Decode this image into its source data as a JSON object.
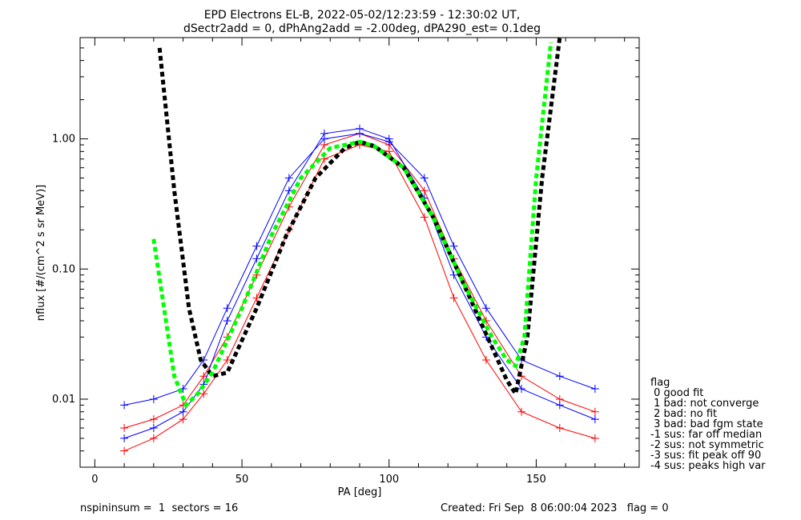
{
  "title_line1": "EPD Electrons EL-B, 2022-05-02/12:23:59 - 12:30:02 UT,",
  "title_line2": "dSectr2add = 0, dPhAng2add = -2.00deg, dPA290_est=   0.1deg",
  "footer_left": "nspininsum =  1  sectors = 16",
  "footer_right": "Created: Fri Sep  8 06:00:04 2023   flag = 0",
  "legend": {
    "title": "flag",
    "items": [
      " 0 good fit",
      " 1 bad: not converge",
      " 2 bad: no fit",
      " 3 bad: bad fgm state",
      "-1 sus: far off median",
      "-2 sus: not symmetric",
      "-3 sus: fit peak off 90",
      "-4 sus: peaks high var"
    ]
  },
  "colors": {
    "series_red": "#ff0000",
    "series_blue": "#0000ff",
    "fit_black": "#000000",
    "fit_green": "#00ff00"
  },
  "chart_data": {
    "type": "line",
    "xlabel": "PA [deg]",
    "ylabel": "nflux [#/(cm^2 s sr MeV)]",
    "xlim": [
      -5,
      185
    ],
    "ylim": [
      0.003,
      6.0
    ],
    "yscale": "log",
    "xticks": [
      "0",
      "50",
      "100",
      "150"
    ],
    "yticks": [
      "0.01",
      "0.10",
      "1.00"
    ],
    "sector_pa": [
      10,
      20,
      30,
      37,
      45,
      55,
      66,
      78,
      90,
      100,
      112,
      122,
      133,
      145,
      158,
      170
    ],
    "series": [
      {
        "color": "red",
        "values": [
          0.006,
          0.007,
          0.009,
          0.015,
          0.03,
          0.09,
          0.3,
          0.9,
          1.1,
          0.9,
          0.4,
          0.12,
          0.04,
          0.015,
          0.01,
          0.008
        ]
      },
      {
        "color": "blue",
        "values": [
          0.005,
          0.006,
          0.008,
          0.013,
          0.04,
          0.12,
          0.4,
          1.1,
          1.2,
          1.0,
          0.35,
          0.09,
          0.03,
          0.012,
          0.009,
          0.007
        ]
      },
      {
        "color": "red",
        "values": [
          0.004,
          0.005,
          0.007,
          0.011,
          0.02,
          0.06,
          0.2,
          0.7,
          0.9,
          0.8,
          0.25,
          0.06,
          0.02,
          0.008,
          0.006,
          0.005
        ]
      },
      {
        "color": "blue",
        "values": [
          0.009,
          0.01,
          0.012,
          0.02,
          0.05,
          0.15,
          0.5,
          1.0,
          1.1,
          0.95,
          0.5,
          0.15,
          0.05,
          0.02,
          0.015,
          0.012
        ]
      }
    ],
    "fits": [
      {
        "color": "black",
        "x": [
          22,
          27,
          32,
          36,
          40,
          45,
          55,
          65,
          75,
          85,
          90,
          95,
          105,
          115,
          125,
          135,
          140,
          143,
          147,
          152,
          158
        ],
        "y": [
          5.0,
          0.4,
          0.05,
          0.02,
          0.015,
          0.016,
          0.05,
          0.18,
          0.5,
          0.85,
          0.95,
          0.88,
          0.6,
          0.25,
          0.08,
          0.025,
          0.014,
          0.011,
          0.03,
          0.5,
          6.0
        ]
      },
      {
        "color": "green",
        "x": [
          20,
          23,
          27,
          31,
          35,
          40,
          50,
          60,
          70,
          80,
          90,
          95,
          105,
          115,
          125,
          135,
          140,
          143,
          146,
          150,
          155
        ],
        "y": [
          0.17,
          0.06,
          0.015,
          0.009,
          0.011,
          0.016,
          0.05,
          0.18,
          0.5,
          0.85,
          0.95,
          0.88,
          0.6,
          0.25,
          0.08,
          0.03,
          0.02,
          0.018,
          0.03,
          0.5,
          5.5
        ]
      }
    ]
  }
}
